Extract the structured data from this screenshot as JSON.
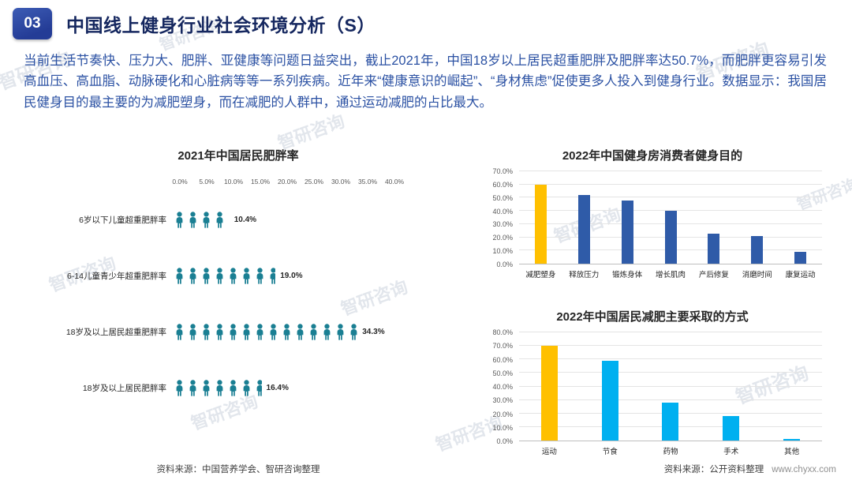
{
  "header": {
    "badge": "03",
    "title": "中国线上健身行业社会环境分析（S）"
  },
  "intro": "当前生活节奏快、压力大、肥胖、亚健康等问题日益突出，截止2021年，中国18岁以上居民超重肥胖及肥胖率达50.7%，而肥胖更容易引发高血压、高血脂、动脉硬化和心脏病等等一系列疾病。近年来“健康意识的崛起”、“身材焦虑”促使更多人投入到健身行业。数据显示：我国居民健身目的最主要的为减肥塑身，而在减肥的人群中，通过运动减肥的占比最大。",
  "colors": {
    "title_navy": "#15275f",
    "text_blue": "#2b51a3",
    "pictogram_teal": "#1a7f93",
    "bar_yellow": "#ffc000",
    "bar_blue": "#2f5ba8",
    "bar_cyan": "#00b0f0"
  },
  "chart_data": [
    {
      "type": "bar",
      "subtype": "pictogram",
      "title": "2021年中国居民肥胖率",
      "categories": [
        "6岁以下儿童超重肥胖率",
        "6-14儿童青少年超重肥胖率",
        "18岁及以上居民超重肥胖率",
        "18岁及以上居民肥胖率"
      ],
      "values": [
        10.4,
        19.0,
        34.3,
        16.4
      ],
      "labels": [
        "10.4%",
        "19.0%",
        "34.3%",
        "16.4%"
      ],
      "unit_per_icon": 2.5,
      "x_ticks": [
        "0.0%",
        "5.0%",
        "10.0%",
        "15.0%",
        "20.0%",
        "25.0%",
        "30.0%",
        "35.0%",
        "40.0%"
      ],
      "xlim": [
        0,
        40
      ]
    },
    {
      "type": "bar",
      "title": "2022年中国健身房消费者健身目的",
      "categories": [
        "减肥塑身",
        "释放压力",
        "锻炼身体",
        "增长肌肉",
        "产后修复",
        "消磨时间",
        "康复运动"
      ],
      "values": [
        60,
        52,
        48,
        40,
        23,
        21,
        9
      ],
      "ylim": [
        0,
        70
      ],
      "y_ticks": [
        "0.0%",
        "10.0%",
        "20.0%",
        "30.0%",
        "40.0%",
        "50.0%",
        "60.0%",
        "70.0%"
      ],
      "bar_colors": [
        "#ffc000",
        "#2f5ba8",
        "#2f5ba8",
        "#2f5ba8",
        "#2f5ba8",
        "#2f5ba8",
        "#2f5ba8"
      ],
      "grid": true,
      "legend": false
    },
    {
      "type": "bar",
      "title": "2022年中国居民减肥主要采取的方式",
      "categories": [
        "运动",
        "节食",
        "药物",
        "手术",
        "其他"
      ],
      "values": [
        70,
        59,
        28,
        18,
        1
      ],
      "ylim": [
        0,
        80
      ],
      "y_ticks": [
        "0.0%",
        "10.0%",
        "20.0%",
        "30.0%",
        "40.0%",
        "50.0%",
        "60.0%",
        "70.0%",
        "80.0%"
      ],
      "bar_colors": [
        "#ffc000",
        "#00b0f0",
        "#00b0f0",
        "#00b0f0",
        "#00b0f0"
      ],
      "grid": true,
      "legend": false
    }
  ],
  "sources": {
    "left": "资料来源：中国营养学会、智研咨询整理",
    "right": "资料来源：公开资料整理",
    "right_url": "www.chyxx.com"
  },
  "watermark": "智研咨询"
}
